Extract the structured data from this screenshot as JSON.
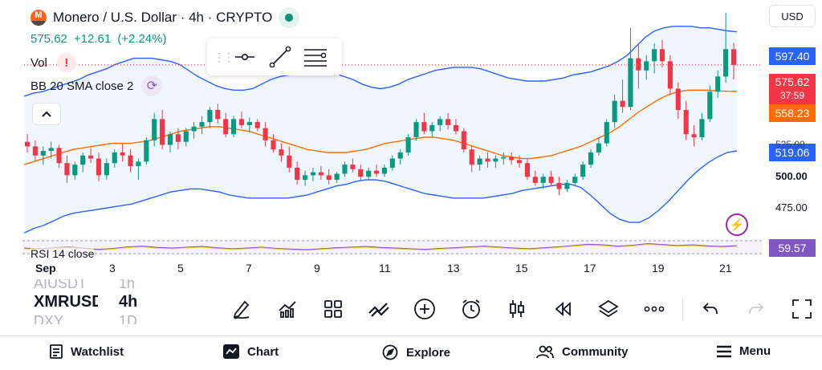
{
  "header": {
    "title": "Monero / U.S. Dollar · 4h · CRYPTO",
    "price": "575.62",
    "change": "+12.61",
    "change_pct": "(+2.24%)"
  },
  "indicators": {
    "vol_label": "Vol",
    "vol_warning": "!",
    "bb_label": "BB 20 SMA close 2",
    "rsi_label": "RSI 14 close"
  },
  "currency": "USD",
  "price_axis": {
    "bb_upper": "597.40",
    "last_price": "575.62",
    "countdown": "37:59",
    "bb_middle": "558.23",
    "bb_lower": "519.06",
    "ticks": [
      "525.00",
      "500.00",
      "475.00"
    ],
    "rsi_value": "59.57"
  },
  "time_axis": [
    "Sep",
    "3",
    "5",
    "7",
    "9",
    "11",
    "13",
    "15",
    "17",
    "19",
    "21"
  ],
  "tickers": {
    "prev_symbol": "AIUSDT",
    "prev_interval": "1h",
    "symbol": "XMRUSD",
    "interval": "4h",
    "next_symbol": "DXY",
    "next_interval": "1D"
  },
  "toolbar_icons": [
    "pen-icon",
    "indicators-icon",
    "templates-icon",
    "drawings-icon",
    "add-icon",
    "alert-icon",
    "candle-type-icon",
    "replay-icon",
    "layers-icon",
    "more-icon",
    "undo-icon",
    "redo-icon",
    "fullscreen-icon"
  ],
  "nav": {
    "watchlist": "Watchlist",
    "chart": "Chart",
    "explore": "Explore",
    "community": "Community",
    "menu": "Menu"
  },
  "colors": {
    "up": "#089981",
    "down": "#f23645",
    "bb_band": "#2962ff",
    "bb_basis": "#ff6d00",
    "rsi": "#7e57c2"
  },
  "chart_data": {
    "type": "candlestick",
    "symbol": "XMRUSD",
    "interval": "4h",
    "ylim": [
      462,
      612
    ],
    "day_ticks": [
      1,
      3,
      5,
      7,
      9,
      11,
      13,
      15,
      17,
      19,
      21
    ],
    "candles": [
      [
        525,
        530,
        518,
        522
      ],
      [
        522,
        526,
        512,
        516
      ],
      [
        516,
        522,
        510,
        519
      ],
      [
        519,
        525,
        514,
        521
      ],
      [
        521,
        523,
        508,
        511
      ],
      [
        511,
        516,
        498,
        503
      ],
      [
        503,
        512,
        500,
        510
      ],
      [
        510,
        518,
        505,
        516
      ],
      [
        516,
        521,
        511,
        514
      ],
      [
        514,
        518,
        499,
        503
      ],
      [
        503,
        514,
        500,
        511
      ],
      [
        511,
        520,
        508,
        518
      ],
      [
        518,
        524,
        512,
        516
      ],
      [
        516,
        520,
        505,
        509
      ],
      [
        509,
        514,
        500,
        512
      ],
      [
        512,
        528,
        510,
        526
      ],
      [
        526,
        544,
        522,
        540
      ],
      [
        540,
        546,
        520,
        523
      ],
      [
        523,
        532,
        518,
        530
      ],
      [
        530,
        534,
        520,
        525
      ],
      [
        525,
        534,
        522,
        532
      ],
      [
        532,
        538,
        527,
        535
      ],
      [
        535,
        542,
        530,
        538
      ],
      [
        538,
        548,
        534,
        546
      ],
      [
        546,
        550,
        537,
        540
      ],
      [
        540,
        544,
        528,
        530
      ],
      [
        530,
        542,
        528,
        540
      ],
      [
        540,
        545,
        534,
        536
      ],
      [
        536,
        541,
        531,
        538
      ],
      [
        538,
        540,
        532,
        534
      ],
      [
        534,
        538,
        522,
        526
      ],
      [
        526,
        530,
        518,
        520
      ],
      [
        520,
        524,
        512,
        516
      ],
      [
        516,
        522,
        505,
        508
      ],
      [
        508,
        512,
        497,
        500
      ],
      [
        500,
        506,
        496,
        503
      ],
      [
        503,
        508,
        499,
        505
      ],
      [
        505,
        509,
        500,
        503
      ],
      [
        503,
        507,
        497,
        500
      ],
      [
        500,
        505,
        498,
        504
      ],
      [
        504,
        512,
        502,
        510
      ],
      [
        510,
        514,
        505,
        507
      ],
      [
        507,
        510,
        500,
        502
      ],
      [
        502,
        508,
        500,
        506
      ],
      [
        506,
        510,
        502,
        504
      ],
      [
        504,
        510,
        502,
        508
      ],
      [
        508,
        516,
        506,
        514
      ],
      [
        514,
        520,
        510,
        518
      ],
      [
        518,
        530,
        516,
        528
      ],
      [
        528,
        540,
        526,
        538
      ],
      [
        538,
        544,
        530,
        532
      ],
      [
        532,
        538,
        528,
        536
      ],
      [
        536,
        542,
        532,
        540
      ],
      [
        540,
        544,
        533,
        536
      ],
      [
        536,
        540,
        530,
        532
      ],
      [
        532,
        534,
        518,
        520
      ],
      [
        520,
        522,
        505,
        510
      ],
      [
        510,
        516,
        506,
        514
      ],
      [
        514,
        518,
        508,
        512
      ],
      [
        512,
        516,
        508,
        514
      ],
      [
        514,
        518,
        510,
        515
      ],
      [
        515,
        518,
        510,
        513
      ],
      [
        513,
        516,
        508,
        511
      ],
      [
        511,
        514,
        500,
        502
      ],
      [
        502,
        506,
        496,
        498
      ],
      [
        498,
        504,
        494,
        502
      ],
      [
        502,
        506,
        496,
        498
      ],
      [
        498,
        502,
        490,
        494
      ],
      [
        494,
        500,
        492,
        498
      ],
      [
        498,
        504,
        496,
        502
      ],
      [
        502,
        512,
        500,
        510
      ],
      [
        510,
        520,
        508,
        518
      ],
      [
        518,
        528,
        516,
        524
      ],
      [
        524,
        540,
        522,
        538
      ],
      [
        538,
        556,
        534,
        552
      ],
      [
        552,
        566,
        544,
        548
      ],
      [
        548,
        600,
        546,
        580
      ],
      [
        580,
        590,
        560,
        572
      ],
      [
        572,
        582,
        566,
        578
      ],
      [
        578,
        590,
        570,
        586
      ],
      [
        586,
        592,
        574,
        578
      ],
      [
        578,
        582,
        556,
        560
      ],
      [
        560,
        564,
        540,
        546
      ],
      [
        546,
        552,
        526,
        530
      ],
      [
        530,
        536,
        522,
        528
      ],
      [
        528,
        544,
        526,
        540
      ],
      [
        540,
        562,
        538,
        558
      ],
      [
        558,
        572,
        554,
        568
      ],
      [
        568,
        610,
        564,
        586
      ],
      [
        586,
        590,
        566,
        575.62
      ]
    ],
    "bb_upper": [
      555,
      557,
      558,
      560,
      562,
      564,
      566,
      569,
      571,
      573,
      576,
      578,
      580,
      580,
      580,
      579,
      578,
      576,
      572,
      568,
      565,
      562,
      560,
      559,
      559,
      560,
      563,
      566,
      568,
      569,
      570,
      571,
      572,
      572,
      570,
      568,
      566,
      563,
      561,
      560,
      561,
      563,
      566,
      568,
      570,
      572,
      573,
      574,
      574,
      574,
      573,
      571,
      569,
      567,
      566,
      565,
      565,
      565,
      566,
      567,
      569,
      570,
      571,
      573,
      575,
      578,
      582,
      588,
      594,
      598,
      600,
      601,
      601,
      601,
      600,
      600,
      599,
      598,
      597.4
    ],
    "bb_basis": [
      510,
      512,
      514,
      516,
      518,
      520,
      521,
      522,
      523,
      524,
      524,
      524,
      525,
      526,
      528,
      530,
      532,
      533,
      534,
      535,
      535,
      534,
      533,
      532,
      530,
      528,
      526,
      524,
      522,
      520,
      519,
      518,
      518,
      518,
      519,
      520,
      522,
      524,
      525,
      526,
      527,
      528,
      528,
      527,
      526,
      524,
      522,
      520,
      518,
      516,
      515,
      514,
      514,
      515,
      516,
      518,
      520,
      522,
      525,
      528,
      531,
      535,
      540,
      545,
      549,
      553,
      556,
      558,
      559,
      559,
      559,
      558.5,
      558.3,
      558.23
    ],
    "bb_lower": [
      465,
      468,
      470,
      473,
      476,
      478,
      479,
      480,
      481,
      482,
      483,
      484,
      486,
      488,
      490,
      492,
      493,
      494,
      494,
      493,
      492,
      490,
      489,
      488,
      488,
      488,
      488,
      488,
      489,
      490,
      492,
      494,
      496,
      497,
      499,
      500,
      500,
      499,
      497,
      495,
      493,
      491,
      490,
      489,
      488,
      488,
      488,
      488,
      489,
      490,
      491,
      493,
      494,
      495,
      496,
      497,
      497,
      495,
      490,
      484,
      478,
      474,
      472,
      472,
      475,
      480,
      486,
      493,
      500,
      506,
      511,
      515,
      518,
      519.06
    ],
    "rsi": [
      52,
      50,
      53,
      55,
      52,
      48,
      51,
      56,
      58,
      54,
      52,
      55,
      57,
      53,
      50,
      52,
      55,
      51,
      49,
      47,
      50,
      53,
      55,
      57,
      54,
      52,
      50,
      48,
      51,
      53,
      56,
      58,
      55,
      52,
      50,
      53,
      56,
      60,
      64,
      62,
      58,
      61,
      66,
      63,
      60,
      62,
      59,
      57,
      59.57
    ]
  }
}
